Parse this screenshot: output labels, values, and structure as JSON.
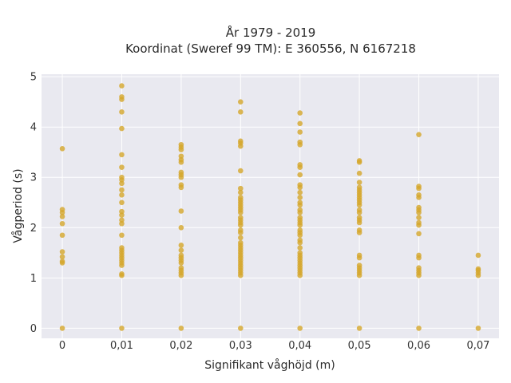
{
  "chart_data": {
    "type": "scatter",
    "title_line1": "År 1979 - 2019",
    "title_line2": "Koordinat (Sweref 99 TM): E 360556, N 6167218",
    "xlabel": "Signifikant våghöjd (m)",
    "ylabel": "Vågperiod (s)",
    "xlim": [
      -0.0035,
      0.0735
    ],
    "ylim": [
      -0.2,
      5.05
    ],
    "x_tick_values": [
      0,
      0.01,
      0.02,
      0.03,
      0.04,
      0.05,
      0.06,
      0.07
    ],
    "x_tick_labels": [
      "0",
      "0,01",
      "0,02",
      "0,03",
      "0,04",
      "0,05",
      "0,06",
      "0,07"
    ],
    "y_tick_values": [
      0,
      1,
      2,
      3,
      4,
      5
    ],
    "y_tick_labels": [
      "0",
      "1",
      "2",
      "3",
      "4",
      "5"
    ],
    "grid": true,
    "point_color": "#d4a62a",
    "background_color": "#e9e9f0",
    "points": [
      {
        "x": 0,
        "y": 0
      },
      {
        "x": 0,
        "y": 1.3
      },
      {
        "x": 0,
        "y": 1.33
      },
      {
        "x": 0,
        "y": 1.42
      },
      {
        "x": 0,
        "y": 1.52
      },
      {
        "x": 0,
        "y": 1.85
      },
      {
        "x": 0,
        "y": 2.08
      },
      {
        "x": 0,
        "y": 2.22
      },
      {
        "x": 0,
        "y": 2.3
      },
      {
        "x": 0,
        "y": 2.36
      },
      {
        "x": 0,
        "y": 3.57
      },
      {
        "x": 0.01,
        "y": 0
      },
      {
        "x": 0.01,
        "y": 1.05
      },
      {
        "x": 0.01,
        "y": 1.08
      },
      {
        "x": 0.01,
        "y": 1.25
      },
      {
        "x": 0.01,
        "y": 1.3
      },
      {
        "x": 0.01,
        "y": 1.35
      },
      {
        "x": 0.01,
        "y": 1.4
      },
      {
        "x": 0.01,
        "y": 1.45
      },
      {
        "x": 0.01,
        "y": 1.5
      },
      {
        "x": 0.01,
        "y": 1.55
      },
      {
        "x": 0.01,
        "y": 1.6
      },
      {
        "x": 0.01,
        "y": 1.85
      },
      {
        "x": 0.01,
        "y": 2.08
      },
      {
        "x": 0.01,
        "y": 2.15
      },
      {
        "x": 0.01,
        "y": 2.25
      },
      {
        "x": 0.01,
        "y": 2.32
      },
      {
        "x": 0.01,
        "y": 2.5
      },
      {
        "x": 0.01,
        "y": 2.65
      },
      {
        "x": 0.01,
        "y": 2.75
      },
      {
        "x": 0.01,
        "y": 2.88
      },
      {
        "x": 0.01,
        "y": 2.95
      },
      {
        "x": 0.01,
        "y": 3.0
      },
      {
        "x": 0.01,
        "y": 3.2
      },
      {
        "x": 0.01,
        "y": 3.45
      },
      {
        "x": 0.01,
        "y": 3.97
      },
      {
        "x": 0.01,
        "y": 4.3
      },
      {
        "x": 0.01,
        "y": 4.55
      },
      {
        "x": 0.01,
        "y": 4.6
      },
      {
        "x": 0.01,
        "y": 4.82
      },
      {
        "x": 0.02,
        "y": 0
      },
      {
        "x": 0.02,
        "y": 1.05
      },
      {
        "x": 0.02,
        "y": 1.1
      },
      {
        "x": 0.02,
        "y": 1.15
      },
      {
        "x": 0.02,
        "y": 1.2
      },
      {
        "x": 0.02,
        "y": 1.3
      },
      {
        "x": 0.02,
        "y": 1.35
      },
      {
        "x": 0.02,
        "y": 1.4
      },
      {
        "x": 0.02,
        "y": 1.45
      },
      {
        "x": 0.02,
        "y": 1.55
      },
      {
        "x": 0.02,
        "y": 1.65
      },
      {
        "x": 0.02,
        "y": 2.0
      },
      {
        "x": 0.02,
        "y": 2.33
      },
      {
        "x": 0.02,
        "y": 2.8
      },
      {
        "x": 0.02,
        "y": 2.85
      },
      {
        "x": 0.02,
        "y": 3.0
      },
      {
        "x": 0.02,
        "y": 3.05
      },
      {
        "x": 0.02,
        "y": 3.1
      },
      {
        "x": 0.02,
        "y": 3.3
      },
      {
        "x": 0.02,
        "y": 3.35
      },
      {
        "x": 0.02,
        "y": 3.42
      },
      {
        "x": 0.02,
        "y": 3.55
      },
      {
        "x": 0.02,
        "y": 3.6
      },
      {
        "x": 0.02,
        "y": 3.65
      },
      {
        "x": 0.03,
        "y": 0
      },
      {
        "x": 0.03,
        "y": 1.05
      },
      {
        "x": 0.03,
        "y": 1.1
      },
      {
        "x": 0.03,
        "y": 1.15
      },
      {
        "x": 0.03,
        "y": 1.2
      },
      {
        "x": 0.03,
        "y": 1.25
      },
      {
        "x": 0.03,
        "y": 1.3
      },
      {
        "x": 0.03,
        "y": 1.35
      },
      {
        "x": 0.03,
        "y": 1.4
      },
      {
        "x": 0.03,
        "y": 1.45
      },
      {
        "x": 0.03,
        "y": 1.5
      },
      {
        "x": 0.03,
        "y": 1.55
      },
      {
        "x": 0.03,
        "y": 1.6
      },
      {
        "x": 0.03,
        "y": 1.65
      },
      {
        "x": 0.03,
        "y": 1.7
      },
      {
        "x": 0.03,
        "y": 1.8
      },
      {
        "x": 0.03,
        "y": 1.9
      },
      {
        "x": 0.03,
        "y": 1.95
      },
      {
        "x": 0.03,
        "y": 2.05
      },
      {
        "x": 0.03,
        "y": 2.1
      },
      {
        "x": 0.03,
        "y": 2.15
      },
      {
        "x": 0.03,
        "y": 2.2
      },
      {
        "x": 0.03,
        "y": 2.3
      },
      {
        "x": 0.03,
        "y": 2.35
      },
      {
        "x": 0.03,
        "y": 2.4
      },
      {
        "x": 0.03,
        "y": 2.45
      },
      {
        "x": 0.03,
        "y": 2.5
      },
      {
        "x": 0.03,
        "y": 2.55
      },
      {
        "x": 0.03,
        "y": 2.6
      },
      {
        "x": 0.03,
        "y": 2.7
      },
      {
        "x": 0.03,
        "y": 2.78
      },
      {
        "x": 0.03,
        "y": 3.13
      },
      {
        "x": 0.03,
        "y": 3.62
      },
      {
        "x": 0.03,
        "y": 3.68
      },
      {
        "x": 0.03,
        "y": 3.72
      },
      {
        "x": 0.03,
        "y": 4.3
      },
      {
        "x": 0.03,
        "y": 4.5
      },
      {
        "x": 0.04,
        "y": 0
      },
      {
        "x": 0.04,
        "y": 1.05
      },
      {
        "x": 0.04,
        "y": 1.1
      },
      {
        "x": 0.04,
        "y": 1.15
      },
      {
        "x": 0.04,
        "y": 1.2
      },
      {
        "x": 0.04,
        "y": 1.25
      },
      {
        "x": 0.04,
        "y": 1.3
      },
      {
        "x": 0.04,
        "y": 1.35
      },
      {
        "x": 0.04,
        "y": 1.4
      },
      {
        "x": 0.04,
        "y": 1.45
      },
      {
        "x": 0.04,
        "y": 1.5
      },
      {
        "x": 0.04,
        "y": 1.6
      },
      {
        "x": 0.04,
        "y": 1.7
      },
      {
        "x": 0.04,
        "y": 1.75
      },
      {
        "x": 0.04,
        "y": 1.85
      },
      {
        "x": 0.04,
        "y": 1.9
      },
      {
        "x": 0.04,
        "y": 1.95
      },
      {
        "x": 0.04,
        "y": 2.05
      },
      {
        "x": 0.04,
        "y": 2.1
      },
      {
        "x": 0.04,
        "y": 2.15
      },
      {
        "x": 0.04,
        "y": 2.2
      },
      {
        "x": 0.04,
        "y": 2.3
      },
      {
        "x": 0.04,
        "y": 2.35
      },
      {
        "x": 0.04,
        "y": 2.45
      },
      {
        "x": 0.04,
        "y": 2.5
      },
      {
        "x": 0.04,
        "y": 2.6
      },
      {
        "x": 0.04,
        "y": 2.7
      },
      {
        "x": 0.04,
        "y": 2.8
      },
      {
        "x": 0.04,
        "y": 2.85
      },
      {
        "x": 0.04,
        "y": 3.05
      },
      {
        "x": 0.04,
        "y": 3.2
      },
      {
        "x": 0.04,
        "y": 3.25
      },
      {
        "x": 0.04,
        "y": 3.65
      },
      {
        "x": 0.04,
        "y": 3.7
      },
      {
        "x": 0.04,
        "y": 3.9
      },
      {
        "x": 0.04,
        "y": 4.07
      },
      {
        "x": 0.04,
        "y": 4.28
      },
      {
        "x": 0.05,
        "y": 0
      },
      {
        "x": 0.05,
        "y": 1.05
      },
      {
        "x": 0.05,
        "y": 1.1
      },
      {
        "x": 0.05,
        "y": 1.15
      },
      {
        "x": 0.05,
        "y": 1.2
      },
      {
        "x": 0.05,
        "y": 1.25
      },
      {
        "x": 0.05,
        "y": 1.4
      },
      {
        "x": 0.05,
        "y": 1.45
      },
      {
        "x": 0.05,
        "y": 1.9
      },
      {
        "x": 0.05,
        "y": 1.95
      },
      {
        "x": 0.05,
        "y": 2.1
      },
      {
        "x": 0.05,
        "y": 2.15
      },
      {
        "x": 0.05,
        "y": 2.2
      },
      {
        "x": 0.05,
        "y": 2.3
      },
      {
        "x": 0.05,
        "y": 2.35
      },
      {
        "x": 0.05,
        "y": 2.45
      },
      {
        "x": 0.05,
        "y": 2.5
      },
      {
        "x": 0.05,
        "y": 2.55
      },
      {
        "x": 0.05,
        "y": 2.6
      },
      {
        "x": 0.05,
        "y": 2.65
      },
      {
        "x": 0.05,
        "y": 2.7
      },
      {
        "x": 0.05,
        "y": 2.75
      },
      {
        "x": 0.05,
        "y": 2.8
      },
      {
        "x": 0.05,
        "y": 2.9
      },
      {
        "x": 0.05,
        "y": 3.08
      },
      {
        "x": 0.05,
        "y": 3.3
      },
      {
        "x": 0.05,
        "y": 3.33
      },
      {
        "x": 0.06,
        "y": 0
      },
      {
        "x": 0.06,
        "y": 1.05
      },
      {
        "x": 0.06,
        "y": 1.1
      },
      {
        "x": 0.06,
        "y": 1.15
      },
      {
        "x": 0.06,
        "y": 1.2
      },
      {
        "x": 0.06,
        "y": 1.4
      },
      {
        "x": 0.06,
        "y": 1.45
      },
      {
        "x": 0.06,
        "y": 1.88
      },
      {
        "x": 0.06,
        "y": 2.05
      },
      {
        "x": 0.06,
        "y": 2.1
      },
      {
        "x": 0.06,
        "y": 2.2
      },
      {
        "x": 0.06,
        "y": 2.3
      },
      {
        "x": 0.06,
        "y": 2.35
      },
      {
        "x": 0.06,
        "y": 2.4
      },
      {
        "x": 0.06,
        "y": 2.6
      },
      {
        "x": 0.06,
        "y": 2.65
      },
      {
        "x": 0.06,
        "y": 2.78
      },
      {
        "x": 0.06,
        "y": 2.82
      },
      {
        "x": 0.06,
        "y": 3.85
      },
      {
        "x": 0.07,
        "y": 0
      },
      {
        "x": 0.07,
        "y": 1.05
      },
      {
        "x": 0.07,
        "y": 1.1
      },
      {
        "x": 0.07,
        "y": 1.15
      },
      {
        "x": 0.07,
        "y": 1.18
      },
      {
        "x": 0.07,
        "y": 1.45
      }
    ]
  }
}
